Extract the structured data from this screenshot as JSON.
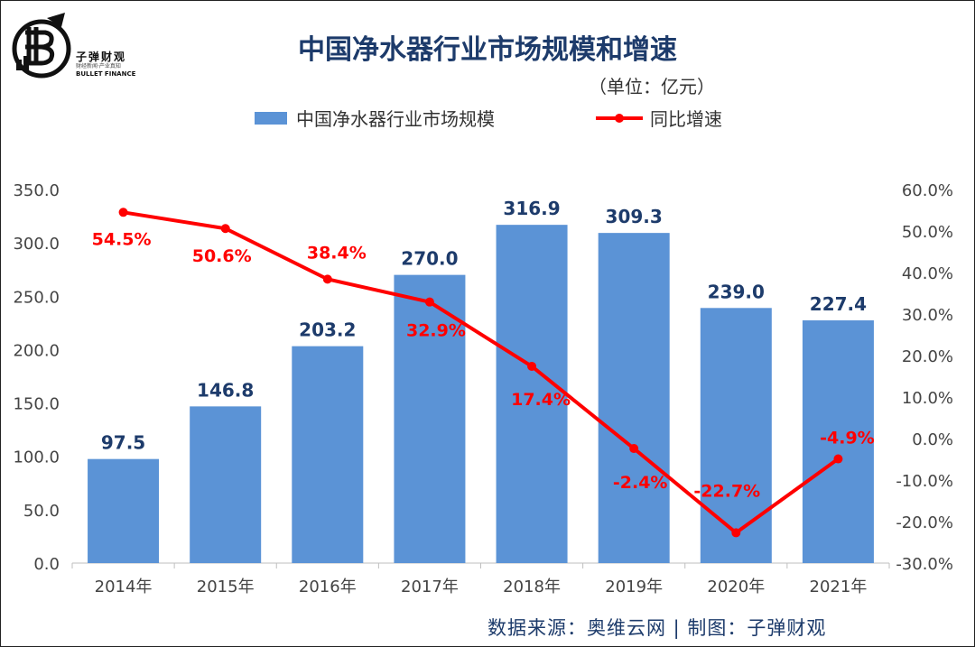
{
  "logo": {
    "icon": "bitcoin-bullet-logo-icon",
    "name": "子弹财观",
    "tagline": "财经新闻·产业真知",
    "english": "BULLET FINANCE"
  },
  "unit_label": "（单位：亿元）",
  "source_text": "数据来源：奥维云网 | 制图：子弹财观",
  "chart_data": {
    "type": "bar",
    "title": "中国净水器行业市场规模和增速",
    "categories": [
      "2014年",
      "2015年",
      "2016年",
      "2017年",
      "2018年",
      "2019年",
      "2020年",
      "2021年"
    ],
    "series": [
      {
        "name": "中国净水器行业市场规模",
        "type": "bar",
        "axis": "left",
        "color": "#5b93d6",
        "values": [
          97.5,
          146.8,
          203.2,
          270.0,
          316.9,
          309.3,
          239.0,
          227.4
        ],
        "labels": [
          "97.5",
          "146.8",
          "203.2",
          "270.0",
          "316.9",
          "309.3",
          "239.0",
          "227.4"
        ]
      },
      {
        "name": "同比增速",
        "type": "line",
        "axis": "right",
        "color": "#ff0000",
        "values": [
          54.5,
          50.6,
          38.4,
          32.9,
          17.4,
          -2.4,
          -22.7,
          -4.9
        ],
        "labels": [
          "54.5%",
          "50.6%",
          "38.4%",
          "32.9%",
          "17.4%",
          "-2.4%",
          "-22.7%",
          "-4.9%"
        ]
      }
    ],
    "y_left": {
      "ylim": [
        0,
        350
      ],
      "ticks": [
        "0.0",
        "50.0",
        "100.0",
        "150.0",
        "200.0",
        "250.0",
        "300.0",
        "350.0"
      ]
    },
    "y_right": {
      "ylim": [
        -30,
        60
      ],
      "ticks": [
        "-30.0%",
        "-20.0%",
        "-10.0%",
        "0.0%",
        "10.0%",
        "20.0%",
        "30.0%",
        "40.0%",
        "50.0%",
        "60.0%"
      ]
    },
    "grid": false,
    "legend": "top-center"
  }
}
